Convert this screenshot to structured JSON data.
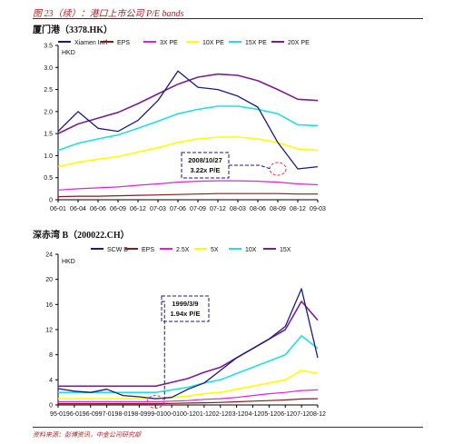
{
  "header": {
    "figure_title": "图 23（续）：港口上市公司 P/E bands"
  },
  "footer": {
    "source": "资料来源：彭博资讯，中金公司研究部"
  },
  "chart_data": [
    {
      "type": "line",
      "title": "厦门港（3378.HK）",
      "ylabel": "HKD",
      "ylim": [
        0,
        3.5
      ],
      "yticks": [
        0,
        0.5,
        1.0,
        1.5,
        2.0,
        2.5,
        3.0,
        3.5
      ],
      "ytick_labels": [
        "0",
        "0.5",
        "1.0",
        "1.5",
        "2.0",
        "2.5",
        "3.0",
        "3.5"
      ],
      "categories": [
        "06-01",
        "06-04",
        "06-06",
        "06-09",
        "06-12",
        "07-03",
        "07-06",
        "07-09",
        "07-12",
        "08-03",
        "08-06",
        "08-09",
        "08-12",
        "09-03"
      ],
      "legend_position": "top",
      "grid": false,
      "series": [
        {
          "name": "Xiamen Int'l",
          "color": "#1a1a80",
          "width": 1.3,
          "values": [
            1.55,
            2.0,
            1.62,
            1.55,
            1.8,
            2.25,
            2.92,
            2.55,
            2.5,
            2.35,
            2.1,
            1.3,
            0.7,
            0.75
          ]
        },
        {
          "name": "EPS",
          "color": "#8b1a1a",
          "width": 1.2,
          "values": [
            0.07,
            0.08,
            0.08,
            0.09,
            0.1,
            0.11,
            0.12,
            0.13,
            0.14,
            0.14,
            0.14,
            0.14,
            0.13,
            0.13
          ]
        },
        {
          "name": "3X PE",
          "color": "#e020e0",
          "width": 1.2,
          "values": [
            0.22,
            0.25,
            0.27,
            0.29,
            0.33,
            0.36,
            0.4,
            0.42,
            0.43,
            0.43,
            0.42,
            0.4,
            0.36,
            0.34
          ]
        },
        {
          "name": "10X PE",
          "color": "#ffff00",
          "width": 1.6,
          "values": [
            0.75,
            0.85,
            0.92,
            0.98,
            1.08,
            1.18,
            1.3,
            1.38,
            1.42,
            1.42,
            1.38,
            1.3,
            1.15,
            1.12
          ]
        },
        {
          "name": "15X PE",
          "color": "#20e0e0",
          "width": 1.6,
          "values": [
            1.12,
            1.28,
            1.38,
            1.47,
            1.62,
            1.78,
            1.95,
            2.05,
            2.12,
            2.12,
            2.05,
            1.95,
            1.7,
            1.68
          ]
        },
        {
          "name": "20X PE",
          "color": "#7a1f8c",
          "width": 1.6,
          "values": [
            1.5,
            1.72,
            1.85,
            1.98,
            2.18,
            2.4,
            2.62,
            2.78,
            2.85,
            2.82,
            2.7,
            2.5,
            2.28,
            2.25
          ]
        }
      ],
      "annotation": {
        "lines": [
          "2008/10/27",
          "3.22x P/E"
        ],
        "x": "08-09",
        "y": 0.7
      }
    },
    {
      "type": "line",
      "title": "深赤湾 B（200022.CH）",
      "ylabel": "HKD",
      "ylim": [
        0,
        24
      ],
      "yticks": [
        0,
        4,
        8,
        12,
        16,
        20,
        24
      ],
      "ytick_labels": [
        "0",
        "4",
        "8",
        "12",
        "16",
        "20",
        "24"
      ],
      "categories": [
        "95-01",
        "96-01",
        "96-09",
        "97-01",
        "98-01",
        "98-09",
        "99-01",
        "00-01",
        "00-12",
        "01-12",
        "02-12",
        "03-12",
        "04-12",
        "05-12",
        "06-12",
        "07-12",
        "08-12"
      ],
      "legend_position": "top",
      "grid": false,
      "series": [
        {
          "name": "SCW B",
          "color": "#1a1a80",
          "width": 1.3,
          "values": [
            2.6,
            2.2,
            2.0,
            2.5,
            1.5,
            1.3,
            1.0,
            1.2,
            2.5,
            3.5,
            5.5,
            7.5,
            9.0,
            10.5,
            12.5,
            18.5,
            7.5
          ]
        },
        {
          "name": "EPS",
          "color": "#8b1a1a",
          "width": 1.2,
          "values": [
            0.2,
            0.2,
            0.2,
            0.2,
            0.2,
            0.2,
            0.2,
            0.25,
            0.3,
            0.35,
            0.4,
            0.5,
            0.6,
            0.7,
            0.8,
            0.95,
            1.0
          ]
        },
        {
          "name": "2.5X",
          "color": "#e020e0",
          "width": 1.2,
          "values": [
            0.5,
            0.5,
            0.5,
            0.5,
            0.5,
            0.5,
            0.5,
            0.6,
            0.7,
            0.9,
            1.0,
            1.2,
            1.5,
            1.8,
            2.0,
            2.3,
            2.4
          ]
        },
        {
          "name": "5X",
          "color": "#ffff00",
          "width": 1.6,
          "values": [
            1.0,
            1.0,
            1.0,
            1.0,
            1.0,
            1.0,
            1.0,
            1.2,
            1.4,
            1.8,
            2.0,
            2.5,
            3.0,
            3.5,
            4.0,
            5.5,
            5.0
          ]
        },
        {
          "name": "10X",
          "color": "#20e0e0",
          "width": 1.6,
          "values": [
            2.0,
            2.0,
            2.0,
            2.0,
            2.0,
            2.0,
            2.0,
            2.4,
            2.8,
            3.5,
            4.0,
            5.0,
            6.0,
            7.0,
            8.0,
            11.0,
            9.0
          ]
        },
        {
          "name": "15X",
          "color": "#7a1f8c",
          "width": 1.6,
          "values": [
            3.0,
            3.0,
            3.0,
            3.0,
            3.0,
            3.0,
            3.0,
            3.6,
            4.2,
            5.2,
            6.0,
            7.5,
            9.0,
            10.5,
            12.0,
            16.5,
            13.5
          ]
        }
      ],
      "annotation": {
        "lines": [
          "1999/3/9",
          "1.94x P/E"
        ],
        "x": "99-01",
        "y": 0.5
      }
    }
  ]
}
